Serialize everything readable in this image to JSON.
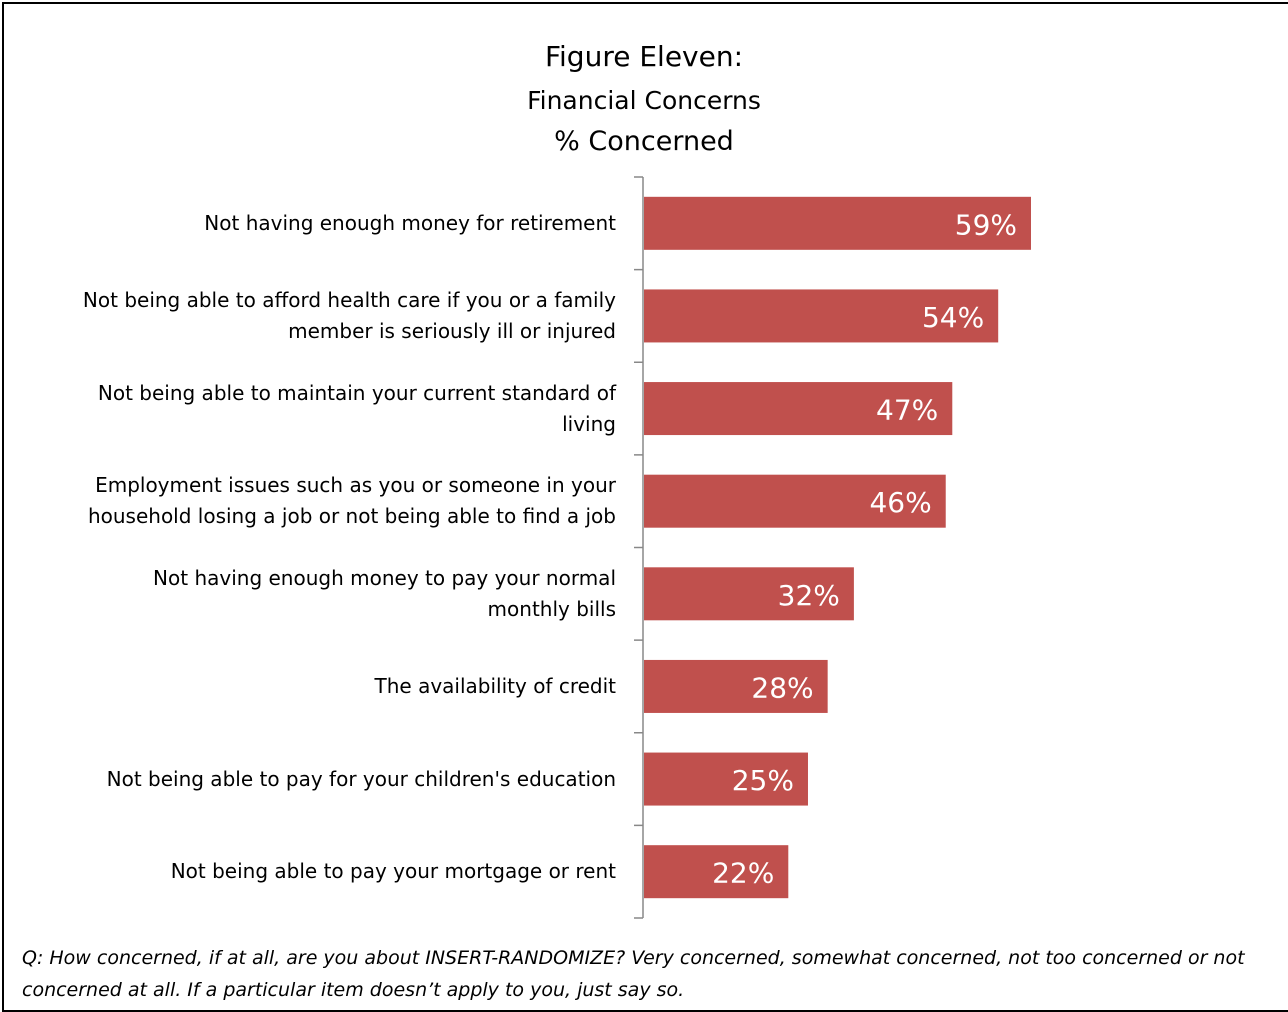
{
  "chart_data": {
    "type": "bar",
    "orientation": "horizontal",
    "title": "Figure Eleven:",
    "subtitle": "Financial Concerns",
    "subtitle2": "% Concerned",
    "categories": [
      "Not having enough money for retirement",
      "Not being able to afford health care if you or a family member is seriously ill or injured",
      "Not being able to maintain your current standard of living",
      "Employment issues such as you or someone in your household losing a job or not being able to find a job",
      "Not having enough money to pay your normal monthly bills",
      "The availability of credit",
      "Not being able to pay for your children's education",
      "Not being able to pay your mortgage or rent"
    ],
    "category_lines": [
      [
        "Not having enough money for retirement"
      ],
      [
        "Not being able to afford health care if you or a family",
        "member is seriously ill or injured"
      ],
      [
        "Not being able to maintain your current standard of",
        "living"
      ],
      [
        "Employment issues such as you or someone in your",
        "household losing a job or not being able to find a job"
      ],
      [
        "Not having enough money to pay your normal",
        "monthly bills"
      ],
      [
        "The availability of credit"
      ],
      [
        "Not being able to pay for your children's education"
      ],
      [
        "Not being able to pay your mortgage or rent"
      ]
    ],
    "values": [
      59,
      54,
      47,
      46,
      32,
      28,
      25,
      22
    ],
    "data_labels": [
      "59%",
      "54%",
      "47%",
      "46%",
      "32%",
      "28%",
      "25%",
      "22%"
    ],
    "xlim": [
      0,
      100
    ],
    "bar_color": "#c0504d",
    "label_color": "#ffffff",
    "grid": false,
    "legend": "none"
  },
  "note": "Q: How concerned, if at all, are you about INSERT-RANDOMIZE?  Very concerned, somewhat concerned, not too concerned or not concerned at all.  If a particular item doesn’t apply to you, just say so."
}
